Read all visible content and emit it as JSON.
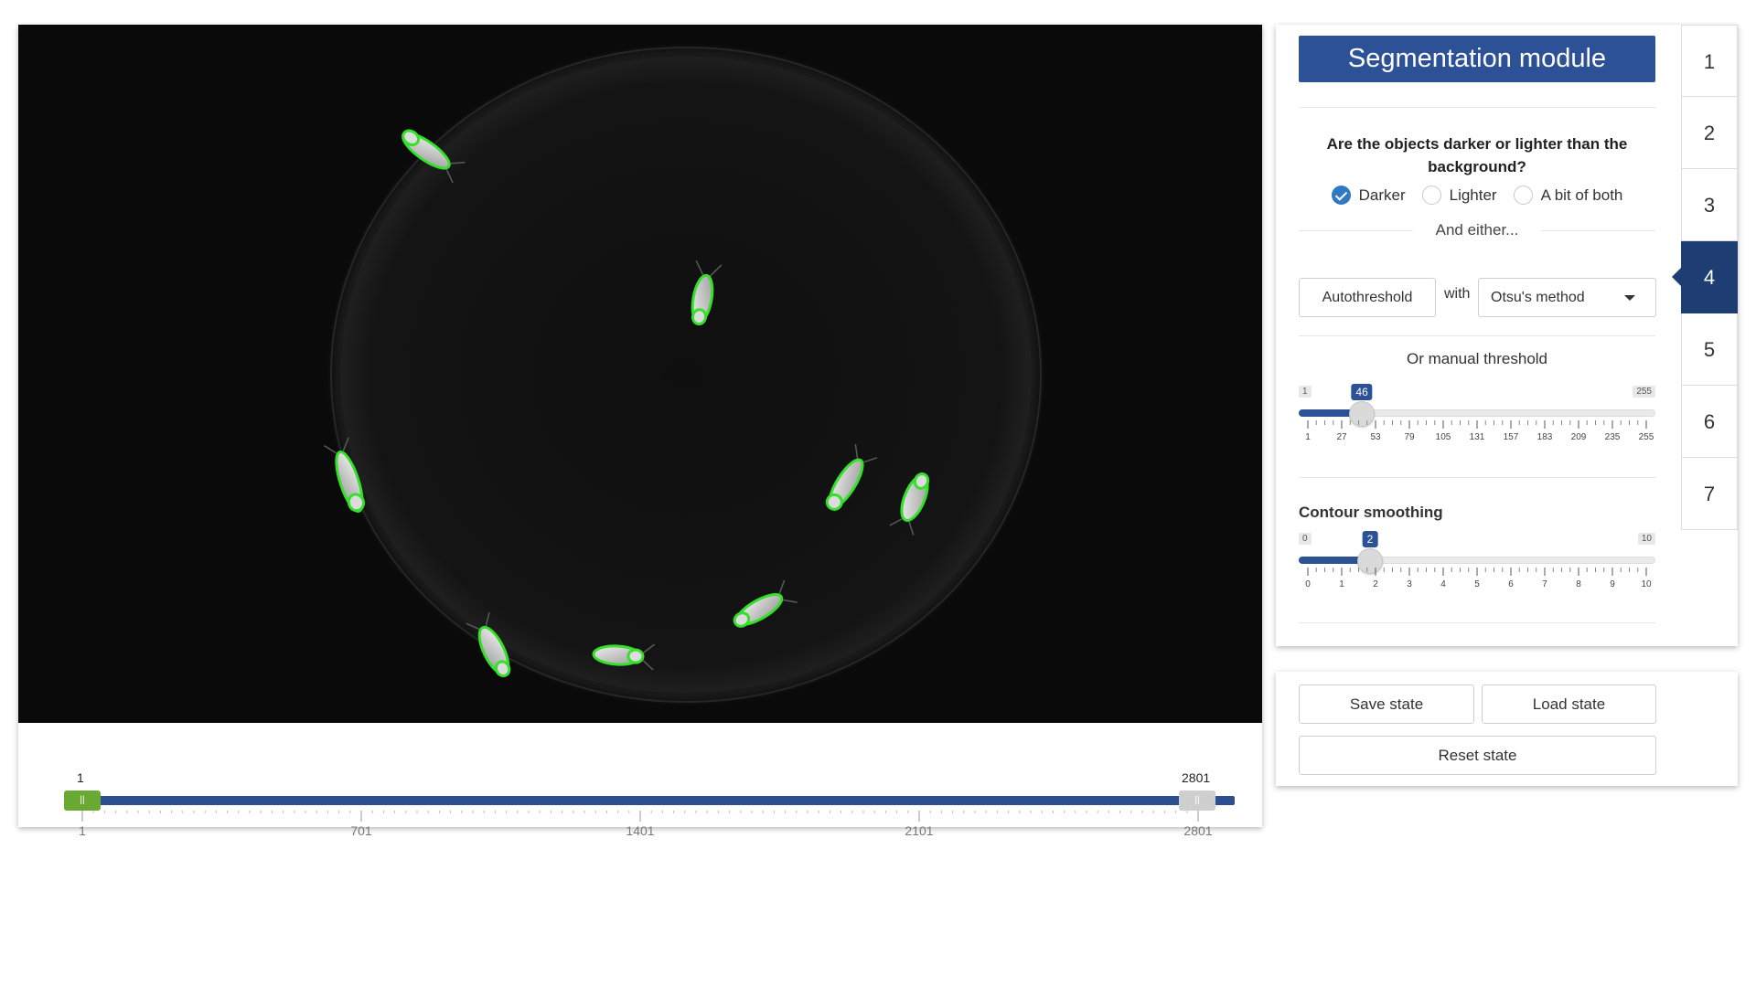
{
  "viewer": {
    "frame_slider": {
      "min": 1,
      "max": 2801,
      "selected_start": 1,
      "selected_end": 2801,
      "start_label": "1",
      "end_label": "2801",
      "handle_glyph": "||",
      "tick_labels": [
        "1",
        "701",
        "1401",
        "2101",
        "2801"
      ],
      "colors": {
        "track": "#2b4f8f",
        "left_handle": "#6aa834",
        "right_handle": "#cfcfcf"
      }
    }
  },
  "controls": {
    "title": "Segmentation module",
    "question": "Are the objects darker or lighter than the background?",
    "options": [
      {
        "label": "Darker",
        "checked": true
      },
      {
        "label": "Lighter",
        "checked": false
      },
      {
        "label": "A bit of both",
        "checked": false
      }
    ],
    "and_either": "And either...",
    "autothreshold_label": "Autothreshold",
    "with_label": "with",
    "method_value": "Otsu's method",
    "manual_label": "Or manual threshold",
    "threshold": {
      "min_label": "1",
      "max_label": "255",
      "value_label": "46",
      "value": 46,
      "min": 1,
      "max": 255,
      "tick_labels": [
        "1",
        "27",
        "53",
        "79",
        "105",
        "131",
        "157",
        "183",
        "209",
        "235",
        "255"
      ]
    },
    "smoothing_label": "Contour smoothing",
    "smoothing": {
      "min_label": "0",
      "max_label": "10",
      "value_label": "2",
      "value": 2,
      "min": 0,
      "max": 10,
      "tick_labels": [
        "0",
        "1",
        "2",
        "3",
        "4",
        "5",
        "6",
        "7",
        "8",
        "9",
        "10"
      ]
    }
  },
  "steps": {
    "labels": [
      "1",
      "2",
      "3",
      "4",
      "5",
      "6",
      "7"
    ],
    "active": "4",
    "colors": {
      "active_bg": "#1e3e73"
    }
  },
  "state": {
    "save_label": "Save state",
    "load_label": "Load state",
    "reset_label": "Reset state"
  },
  "theme": {
    "accent": "#2c5196",
    "contour": "#35e02a"
  }
}
